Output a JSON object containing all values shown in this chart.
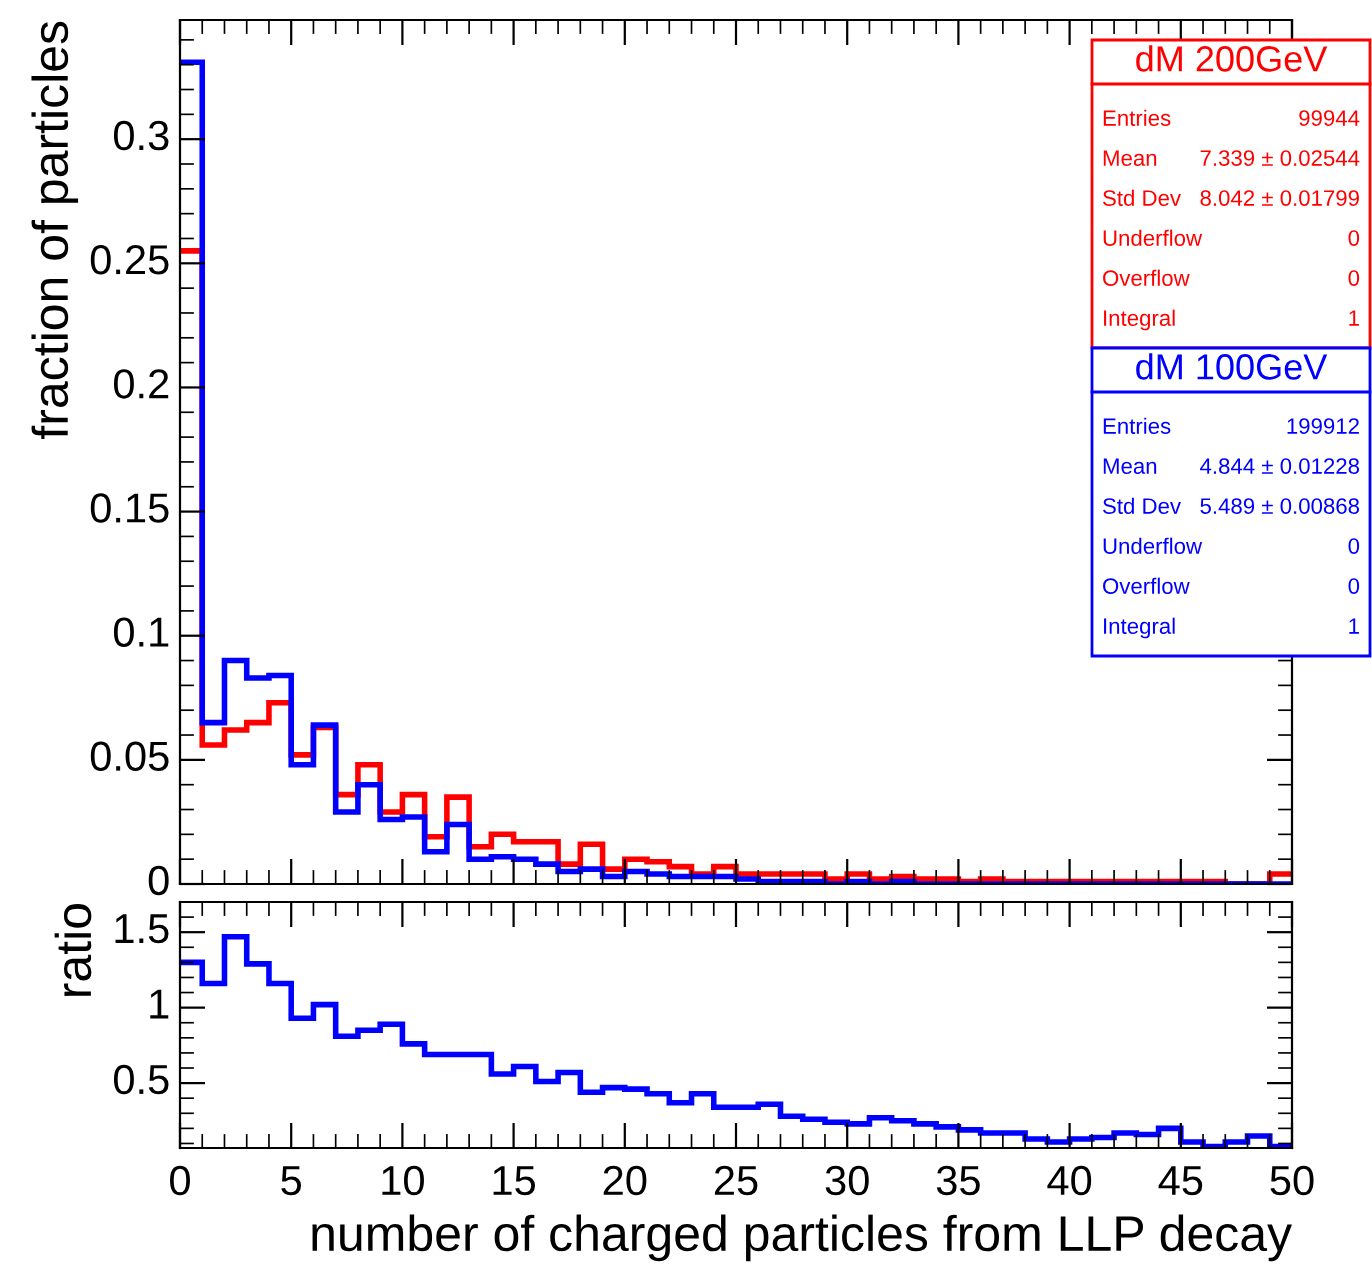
{
  "chart_data": [
    {
      "type": "histogram",
      "ylabel": "fraction of particles",
      "tick_labels": "y",
      "legend": "top right",
      "xlim": [
        0,
        50
      ],
      "xticks": [
        0,
        5,
        10,
        15,
        20,
        25,
        30,
        35,
        40,
        45,
        50
      ],
      "ylim": [
        0,
        0.348
      ],
      "yticks": [
        0,
        0.05,
        0.1,
        0.15,
        0.2,
        0.25,
        0.3
      ],
      "bins": [
        0,
        1,
        2,
        3,
        4,
        5,
        6,
        7,
        8,
        9,
        10,
        11,
        12,
        13,
        14,
        15,
        16,
        17,
        18,
        19,
        20,
        21,
        22,
        23,
        24,
        25,
        26,
        27,
        28,
        29,
        30,
        31,
        32,
        33,
        34,
        35,
        36,
        37,
        38,
        39,
        40,
        41,
        42,
        43,
        44,
        45,
        46,
        47,
        48,
        49,
        50
      ],
      "series": [
        {
          "name": "dM 200GeV",
          "color": "#ff0000",
          "values": [
            0.255,
            0.056,
            0.062,
            0.065,
            0.073,
            0.052,
            0.063,
            0.036,
            0.048,
            0.029,
            0.036,
            0.019,
            0.035,
            0.015,
            0.02,
            0.017,
            0.017,
            0.008,
            0.016,
            0.006,
            0.01,
            0.009,
            0.007,
            0.004,
            0.007,
            0.004,
            0.004,
            0.004,
            0.004,
            0.002,
            0.004,
            0.002,
            0.003,
            0.002,
            0.002,
            0.001,
            0.002,
            0.001,
            0.001,
            0.001,
            0.001,
            0.001,
            0.001,
            0.001,
            0.001,
            0.001,
            0.001,
            0.0,
            0.0,
            0.004
          ]
        },
        {
          "name": "dM 100GeV",
          "color": "#0000ff",
          "values": [
            0.331,
            0.065,
            0.09,
            0.083,
            0.084,
            0.048,
            0.064,
            0.029,
            0.04,
            0.026,
            0.027,
            0.013,
            0.024,
            0.01,
            0.011,
            0.01,
            0.008,
            0.005,
            0.006,
            0.003,
            0.005,
            0.004,
            0.003,
            0.003,
            0.003,
            0.002,
            0.001,
            0.001,
            0.001,
            0.0,
            0.001,
            0.0,
            0.001,
            0.0,
            0.0,
            0.0,
            0.0,
            0.0,
            0.0,
            0.0,
            0.0,
            0.0,
            0.0,
            0.0,
            0.0,
            0.0,
            0.0,
            0.0,
            0.0,
            0.0
          ]
        }
      ],
      "annotations": [
        "Entries",
        "99944",
        "Mean",
        "7.339 ± 0.02544",
        "Std Dev",
        "8.042 ± 0.01799",
        "Underflow",
        "0",
        "Overflow",
        "0",
        "Integral",
        "1",
        "Entries",
        "199912",
        "Mean",
        "4.844 ± 0.01228",
        "Std Dev",
        "5.489 ± 0.00868",
        "Underflow",
        "0",
        "Overflow",
        "0",
        "Integral",
        "1"
      ]
    },
    {
      "type": "histogram",
      "ylabel": "ratio",
      "xlabel": "number of charged particles from LLP decay",
      "xlim": [
        0,
        50
      ],
      "xticks": [
        0,
        5,
        10,
        15,
        20,
        25,
        30,
        35,
        40,
        45,
        50
      ],
      "ylim": [
        0.07,
        1.7
      ],
      "yticks": [
        0.5,
        1,
        1.5
      ],
      "bins": [
        0,
        1,
        2,
        3,
        4,
        5,
        6,
        7,
        8,
        9,
        10,
        11,
        12,
        13,
        14,
        15,
        16,
        17,
        18,
        19,
        20,
        21,
        22,
        23,
        24,
        25,
        26,
        27,
        28,
        29,
        30,
        31,
        32,
        33,
        34,
        35,
        36,
        37,
        38,
        39,
        40,
        41,
        42,
        43,
        44,
        45,
        46,
        47,
        48,
        49,
        50
      ],
      "series": [
        {
          "color": "#0000ff",
          "values": [
            1.3,
            1.16,
            1.47,
            1.29,
            1.16,
            0.93,
            1.02,
            0.81,
            0.85,
            0.89,
            0.76,
            0.69,
            0.69,
            0.69,
            0.56,
            0.61,
            0.51,
            0.57,
            0.44,
            0.47,
            0.46,
            0.43,
            0.37,
            0.43,
            0.34,
            0.34,
            0.36,
            0.28,
            0.26,
            0.24,
            0.23,
            0.27,
            0.25,
            0.23,
            0.21,
            0.19,
            0.17,
            0.17,
            0.13,
            0.11,
            0.13,
            0.14,
            0.17,
            0.16,
            0.2,
            0.11,
            0.08,
            0.11,
            0.15,
            0.08
          ]
        }
      ]
    }
  ]
}
